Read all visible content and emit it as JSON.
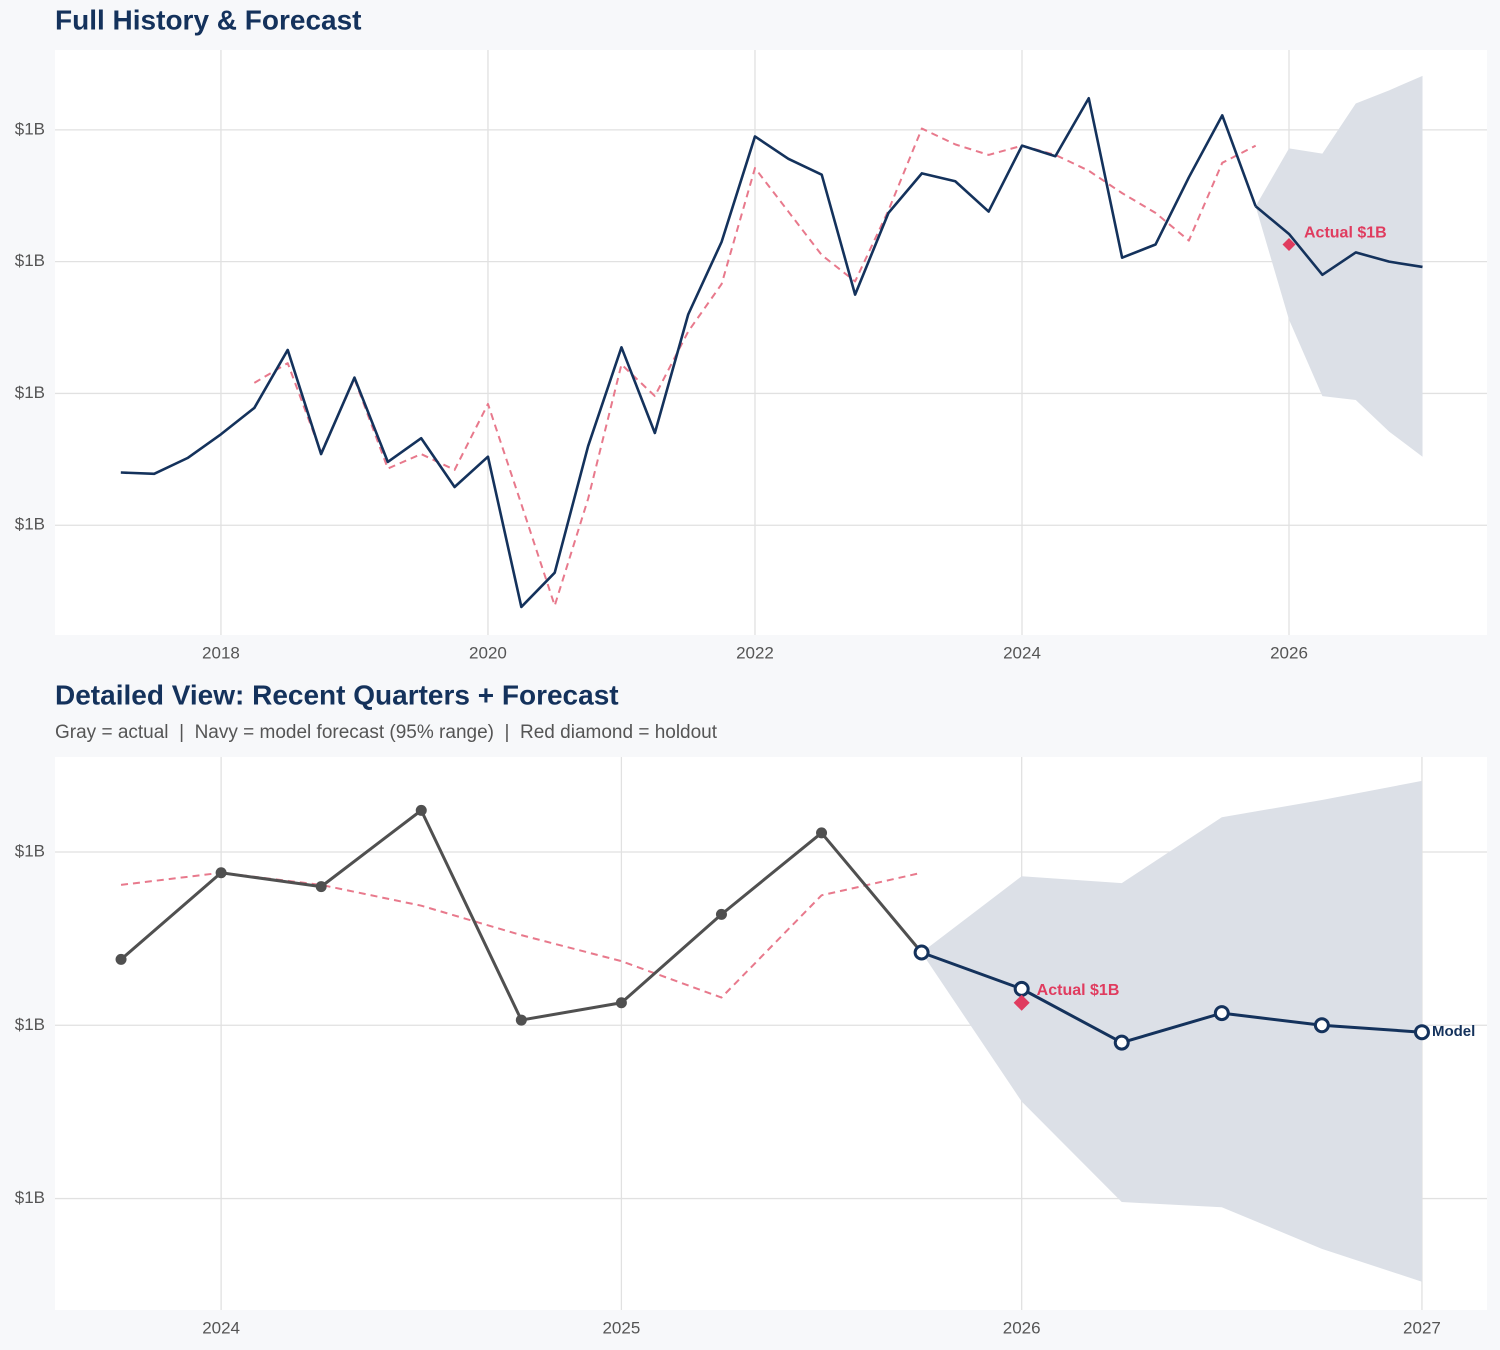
{
  "chart_data": [
    {
      "type": "line",
      "title": "Full History & Forecast",
      "x": [
        2017.25,
        2017.5,
        2017.75,
        2018,
        2018.25,
        2018.5,
        2018.75,
        2019,
        2019.25,
        2019.5,
        2019.75,
        2020,
        2020.25,
        2020.5,
        2020.75,
        2021,
        2021.25,
        2021.5,
        2021.75,
        2022,
        2022.25,
        2022.5,
        2022.75,
        2023,
        2023.25,
        2023.5,
        2023.75,
        2024,
        2024.25,
        2024.5,
        2024.75,
        2025,
        2025.25,
        2025.5,
        2025.75,
        2026,
        2026.25,
        2026.5,
        2026.75,
        2027
      ],
      "xlim": [
        2016.757,
        2027.483
      ],
      "xticks": [
        2018,
        2020,
        2022,
        2024,
        2026
      ],
      "ylim": [
        1.0167,
        1.4606
      ],
      "yticks": [
        {
          "value": 1.1,
          "label": "$1B"
        },
        {
          "value": 1.2,
          "label": "$1B"
        },
        {
          "value": 1.3,
          "label": "$1B"
        },
        {
          "value": 1.4,
          "label": "$1B"
        }
      ],
      "grid": true,
      "band": {
        "color": "#dce0e7",
        "lower": [
          null,
          null,
          null,
          null,
          null,
          null,
          null,
          null,
          null,
          null,
          null,
          null,
          null,
          null,
          null,
          null,
          null,
          null,
          null,
          null,
          null,
          null,
          null,
          null,
          null,
          null,
          null,
          null,
          null,
          null,
          null,
          null,
          null,
          null,
          1.342,
          1.256,
          1.198,
          1.195,
          1.171,
          1.152
        ],
        "upper": [
          null,
          null,
          null,
          null,
          null,
          null,
          null,
          null,
          null,
          null,
          null,
          null,
          null,
          null,
          null,
          null,
          null,
          null,
          null,
          null,
          null,
          null,
          null,
          null,
          null,
          null,
          null,
          null,
          null,
          null,
          null,
          null,
          null,
          null,
          1.342,
          1.386,
          1.382,
          1.42,
          1.43,
          1.441
        ]
      },
      "series": [
        {
          "color": "#e8798c",
          "dash": true,
          "width": 2,
          "values": [
            null,
            null,
            null,
            null,
            1.208,
            1.223,
            1.155,
            1.211,
            1.143,
            1.154,
            1.142,
            1.192,
            1.116,
            1.039,
            1.12,
            1.222,
            1.198,
            1.247,
            1.283,
            1.371,
            1.338,
            1.305,
            1.285,
            1.339,
            1.401,
            1.389,
            1.381,
            1.388,
            1.381,
            1.369,
            1.352,
            1.337,
            1.316,
            1.375,
            1.388,
            null,
            null,
            null,
            null,
            null
          ]
        },
        {
          "color": "#14325c",
          "width": 2.6,
          "values": [
            1.14,
            1.139,
            1.151,
            1.169,
            1.189,
            1.233,
            1.154,
            1.212,
            1.148,
            1.166,
            1.129,
            1.152,
            1.038,
            1.064,
            1.16,
            1.235,
            1.17,
            1.26,
            1.315,
            1.395,
            1.378,
            1.366,
            1.275,
            1.337,
            1.367,
            1.361,
            1.338,
            1.388,
            1.38,
            1.424,
            1.303,
            1.313,
            1.364,
            1.411,
            1.342,
            null,
            null,
            null,
            null,
            null
          ]
        },
        {
          "color": "#14325c",
          "width": 2.6,
          "values": [
            null,
            null,
            null,
            null,
            null,
            null,
            null,
            null,
            null,
            null,
            null,
            null,
            null,
            null,
            null,
            null,
            null,
            null,
            null,
            null,
            null,
            null,
            null,
            null,
            null,
            null,
            null,
            null,
            null,
            null,
            null,
            null,
            null,
            null,
            1.342,
            1.321,
            1.29,
            1.307,
            1.3,
            1.296
          ]
        }
      ],
      "annotations": [
        {
          "x": 2026,
          "value": 1.313,
          "label": "Actual $1B",
          "color": "#e03c5f"
        }
      ]
    },
    {
      "type": "line",
      "title": "Detailed View: Recent Quarters + Forecast",
      "subtitle": "Gray = actual  |  Navy = model forecast (95% range)  |  Red diamond = holdout",
      "x": [
        2023.75,
        2024,
        2024.25,
        2024.5,
        2024.75,
        2025,
        2025.25,
        2025.5,
        2025.75,
        2026,
        2026.25,
        2026.5,
        2026.75,
        2027
      ],
      "xlim": [
        2023.585,
        2027.1625
      ],
      "xticks": [
        2024,
        2025,
        2026,
        2027
      ],
      "ylim": [
        1.1357,
        1.4548
      ],
      "yticks": [
        {
          "value": 1.2,
          "label": "$1B"
        },
        {
          "value": 1.3,
          "label": "$1B"
        },
        {
          "value": 1.4,
          "label": "$1B"
        }
      ],
      "grid": true,
      "band": {
        "color": "#dce0e7",
        "lower": [
          null,
          null,
          null,
          null,
          null,
          null,
          null,
          null,
          1.342,
          1.256,
          1.198,
          1.195,
          1.171,
          1.152
        ],
        "upper": [
          null,
          null,
          null,
          null,
          null,
          null,
          null,
          null,
          1.342,
          1.386,
          1.382,
          1.42,
          1.43,
          1.441
        ]
      },
      "series": [
        {
          "color": "#e8798c",
          "dash": true,
          "width": 2,
          "values": [
            1.381,
            1.388,
            1.381,
            1.369,
            1.352,
            1.337,
            1.316,
            1.375,
            1.388,
            null,
            null,
            null,
            null,
            null
          ]
        },
        {
          "color": "#505050",
          "width": 3,
          "marker": "filled",
          "values": [
            1.338,
            1.388,
            1.38,
            1.424,
            1.303,
            1.313,
            1.364,
            1.411,
            1.342,
            null,
            null,
            null,
            null,
            null
          ]
        },
        {
          "color": "#14325c",
          "width": 3,
          "marker": "open",
          "end_label": "Model",
          "values": [
            null,
            null,
            null,
            null,
            null,
            null,
            null,
            null,
            1.342,
            1.321,
            1.29,
            1.307,
            1.3,
            1.296
          ]
        }
      ],
      "annotations": [
        {
          "x": 2026,
          "value": 1.313,
          "label": "Actual $1B",
          "color": "#e03c5f"
        }
      ]
    }
  ]
}
